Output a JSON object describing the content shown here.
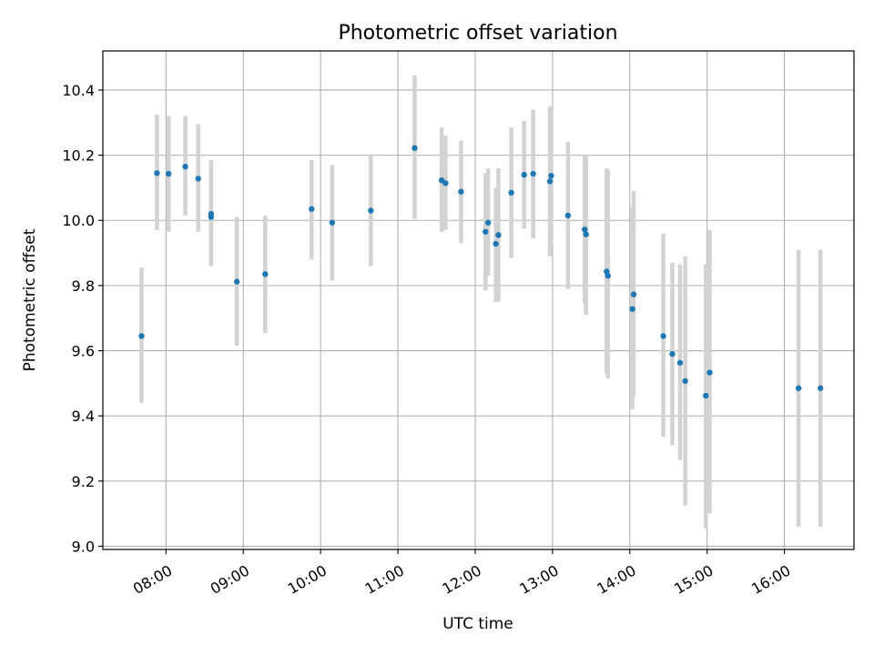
{
  "chart_data": {
    "type": "scatter",
    "title": "Photometric offset variation",
    "xlabel": "UTC time",
    "ylabel": "Photometric offset",
    "ylim": [
      8.99,
      10.52
    ],
    "xlim": [
      "07:11",
      "16:54"
    ],
    "grid": true,
    "x_ticks": [
      "08:00",
      "09:00",
      "10:00",
      "11:00",
      "12:00",
      "13:00",
      "14:00",
      "15:00",
      "16:00"
    ],
    "y_ticks": [
      9.0,
      9.2,
      9.4,
      9.6,
      9.8,
      10.0,
      10.2,
      10.4
    ],
    "y_tick_labels": [
      "9.0",
      "9.2",
      "9.4",
      "9.6",
      "9.8",
      "10.0",
      "10.2",
      "10.4"
    ],
    "point_color": "#1f77b4",
    "errorbar_color": "#d3d3d3",
    "points": [
      {
        "x": "07:41",
        "y": 9.645,
        "ylow": 9.44,
        "yhigh": 9.855
      },
      {
        "x": "07:53",
        "y": 10.145,
        "ylow": 9.97,
        "yhigh": 10.325
      },
      {
        "x": "08:02",
        "y": 10.143,
        "ylow": 9.965,
        "yhigh": 10.32
      },
      {
        "x": "08:15",
        "y": 10.165,
        "ylow": 10.015,
        "yhigh": 10.32
      },
      {
        "x": "08:25",
        "y": 10.128,
        "ylow": 9.965,
        "yhigh": 10.295
      },
      {
        "x": "08:35",
        "y": 10.02,
        "ylow": 9.86,
        "yhigh": 10.185
      },
      {
        "x": "08:35",
        "y": 10.01,
        "ylow": 9.86,
        "yhigh": 10.16
      },
      {
        "x": "08:55",
        "y": 9.812,
        "ylow": 9.615,
        "yhigh": 10.01
      },
      {
        "x": "09:17",
        "y": 9.835,
        "ylow": 9.655,
        "yhigh": 10.015
      },
      {
        "x": "09:53",
        "y": 10.035,
        "ylow": 9.88,
        "yhigh": 10.185
      },
      {
        "x": "10:09",
        "y": 9.993,
        "ylow": 9.815,
        "yhigh": 10.17
      },
      {
        "x": "10:39",
        "y": 10.03,
        "ylow": 9.86,
        "yhigh": 10.2
      },
      {
        "x": "11:13",
        "y": 10.222,
        "ylow": 10.005,
        "yhigh": 10.445
      },
      {
        "x": "11:34",
        "y": 10.123,
        "ylow": 9.965,
        "yhigh": 10.285
      },
      {
        "x": "11:37",
        "y": 10.114,
        "ylow": 9.97,
        "yhigh": 10.26
      },
      {
        "x": "11:49",
        "y": 10.088,
        "ylow": 9.93,
        "yhigh": 10.245
      },
      {
        "x": "12:08",
        "y": 9.965,
        "ylow": 9.785,
        "yhigh": 10.145
      },
      {
        "x": "12:10",
        "y": 9.993,
        "ylow": 9.83,
        "yhigh": 10.16
      },
      {
        "x": "12:16",
        "y": 9.928,
        "ylow": 9.75,
        "yhigh": 10.1
      },
      {
        "x": "12:18",
        "y": 9.955,
        "ylow": 9.75,
        "yhigh": 10.16
      },
      {
        "x": "12:28",
        "y": 10.085,
        "ylow": 9.885,
        "yhigh": 10.285
      },
      {
        "x": "12:38",
        "y": 10.14,
        "ylow": 9.975,
        "yhigh": 10.305
      },
      {
        "x": "12:45",
        "y": 10.143,
        "ylow": 9.945,
        "yhigh": 10.34
      },
      {
        "x": "12:58",
        "y": 10.12,
        "ylow": 9.89,
        "yhigh": 10.35
      },
      {
        "x": "12:59",
        "y": 10.137,
        "ylow": 9.93,
        "yhigh": 10.34
      },
      {
        "x": "13:12",
        "y": 10.015,
        "ylow": 9.79,
        "yhigh": 10.24
      },
      {
        "x": "13:25",
        "y": 9.972,
        "ylow": 9.745,
        "yhigh": 10.2
      },
      {
        "x": "13:26",
        "y": 9.957,
        "ylow": 9.71,
        "yhigh": 10.2
      },
      {
        "x": "13:42",
        "y": 9.843,
        "ylow": 9.53,
        "yhigh": 10.16
      },
      {
        "x": "13:43",
        "y": 9.83,
        "ylow": 9.515,
        "yhigh": 10.155
      },
      {
        "x": "14:02",
        "y": 9.728,
        "ylow": 9.42,
        "yhigh": 10.04
      },
      {
        "x": "14:03",
        "y": 9.773,
        "ylow": 9.46,
        "yhigh": 10.09
      },
      {
        "x": "14:26",
        "y": 9.645,
        "ylow": 9.335,
        "yhigh": 9.96
      },
      {
        "x": "14:33",
        "y": 9.59,
        "ylow": 9.31,
        "yhigh": 9.87
      },
      {
        "x": "14:39",
        "y": 9.563,
        "ylow": 9.265,
        "yhigh": 9.865
      },
      {
        "x": "14:43",
        "y": 9.507,
        "ylow": 9.125,
        "yhigh": 9.89
      },
      {
        "x": "14:59",
        "y": 9.462,
        "ylow": 9.055,
        "yhigh": 9.865
      },
      {
        "x": "15:02",
        "y": 9.533,
        "ylow": 9.1,
        "yhigh": 9.97
      },
      {
        "x": "16:11",
        "y": 9.485,
        "ylow": 9.06,
        "yhigh": 9.91
      },
      {
        "x": "16:28",
        "y": 9.485,
        "ylow": 9.06,
        "yhigh": 9.91
      }
    ]
  }
}
